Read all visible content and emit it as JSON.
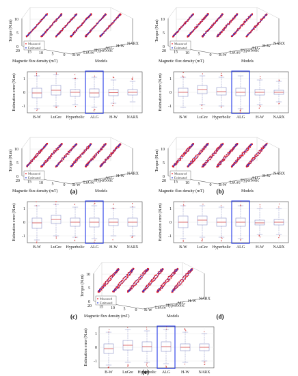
{
  "figure": {
    "common": {
      "torque_label": "Torque (N.m)",
      "flux_label": "Magnetic flux density (mT)",
      "models_label": "Models",
      "error_label": "Estimation error (N.m)",
      "legend_measured": "Measured",
      "legend_estimated": "Estimated",
      "model_names": [
        "B-W",
        "LuGre",
        "Hyperbolic",
        "ALG",
        "H-W",
        "NARX"
      ],
      "torque_ticks": [
        "0",
        "5",
        "10"
      ],
      "flux_ticks": [
        "20",
        "15",
        "10",
        "5",
        "0"
      ],
      "error_ticks": [
        "1",
        "0",
        "-1"
      ],
      "colors": {
        "measured": "#e8191f",
        "estimated": "#2a3bd6",
        "highlight": "#1f35e6",
        "box": "#8a90c8",
        "median": "#d23434"
      }
    },
    "panels": [
      {
        "id": "a",
        "label": "(a)"
      },
      {
        "id": "b",
        "label": "(b)"
      },
      {
        "id": "c",
        "label": "(c)"
      },
      {
        "id": "d",
        "label": "(d)"
      },
      {
        "id": "e",
        "label": "(e)"
      }
    ]
  },
  "chart_data": [
    {
      "type": "scatter",
      "panel": "(a)",
      "xlabel": "Magnetic flux density (mT)",
      "ylabel": "Torque (N.m)",
      "zlabel": "Models",
      "categories": [
        "B-W",
        "LuGre",
        "Hyperbolic",
        "ALG",
        "H-W",
        "NARX"
      ],
      "xlim": [
        0,
        20
      ],
      "ylim": [
        0,
        10
      ],
      "series": [
        {
          "name": "Measured"
        },
        {
          "name": "Estimated"
        }
      ]
    },
    {
      "type": "box",
      "panel": "(a)",
      "ylabel": "Estimation error (N.m)",
      "categories": [
        "B-W",
        "LuGre",
        "Hyperbolic",
        "ALG",
        "H-W",
        "NARX"
      ],
      "ylim": [
        -1.5,
        1.5
      ],
      "highlight": "ALG",
      "boxes": [
        {
          "q1": -0.4,
          "median": -0.05,
          "q3": 0.3,
          "low": -1.2,
          "high": 1.2
        },
        {
          "q1": -0.2,
          "median": 0.15,
          "q3": 0.5,
          "low": -1.0,
          "high": 1.3
        },
        {
          "q1": -0.3,
          "median": 0.0,
          "q3": 0.2,
          "low": -0.9,
          "high": 1.0
        },
        {
          "q1": -0.35,
          "median": -0.05,
          "q3": 0.25,
          "low": -1.1,
          "high": 1.1
        },
        {
          "q1": -0.25,
          "median": -0.02,
          "q3": 0.2,
          "low": -0.8,
          "high": 0.9
        },
        {
          "q1": -0.2,
          "median": 0.0,
          "q3": 0.2,
          "low": -0.7,
          "high": 0.8
        }
      ]
    },
    {
      "type": "scatter",
      "panel": "(b)",
      "xlabel": "Magnetic flux density (mT)",
      "ylabel": "Torque (N.m)",
      "zlabel": "Models",
      "categories": [
        "B-W",
        "LuGre",
        "Hyperbolic",
        "ALG",
        "H-W",
        "NARX"
      ],
      "xlim": [
        0,
        20
      ],
      "ylim": [
        0,
        10
      ],
      "series": [
        {
          "name": "Measured"
        },
        {
          "name": "Estimated"
        }
      ]
    },
    {
      "type": "box",
      "panel": "(b)",
      "ylabel": "Estimation error (N.m)",
      "categories": [
        "B-W",
        "LuGre",
        "Hyperbolic",
        "ALG",
        "H-W",
        "NARX"
      ],
      "ylim": [
        -1.5,
        1.5
      ],
      "highlight": "ALG",
      "boxes": [
        {
          "q1": -0.3,
          "median": 0.0,
          "q3": 0.3,
          "low": -1.1,
          "high": 1.1
        },
        {
          "q1": -0.1,
          "median": 0.2,
          "q3": 0.5,
          "low": -0.9,
          "high": 1.2
        },
        {
          "q1": -0.2,
          "median": 0.05,
          "q3": 0.35,
          "low": -1.0,
          "high": 1.1
        },
        {
          "q1": -0.25,
          "median": 0.0,
          "q3": 0.3,
          "low": -1.2,
          "high": 1.2
        },
        {
          "q1": -0.2,
          "median": 0.0,
          "q3": 0.2,
          "low": -0.9,
          "high": 0.9
        },
        {
          "q1": -0.15,
          "median": 0.0,
          "q3": 0.15,
          "low": -0.7,
          "high": 0.8
        }
      ]
    },
    {
      "type": "scatter",
      "panel": "(c)",
      "xlabel": "Magnetic flux density (mT)",
      "ylabel": "Torque (N.m)",
      "zlabel": "Models",
      "categories": [
        "B-W",
        "LuGre",
        "Hyperbolic",
        "ALG",
        "H-W",
        "NARX"
      ],
      "xlim": [
        0,
        20
      ],
      "ylim": [
        0,
        10
      ],
      "series": [
        {
          "name": "Measured"
        },
        {
          "name": "Estimated"
        }
      ]
    },
    {
      "type": "box",
      "panel": "(c)",
      "ylabel": "Estimation error (N.m)",
      "categories": [
        "B-W",
        "LuGre",
        "Hyperbolic",
        "ALG",
        "H-W",
        "NARX"
      ],
      "ylim": [
        -1.5,
        1.5
      ],
      "highlight": "ALG",
      "boxes": [
        {
          "q1": -0.45,
          "median": -0.05,
          "q3": 0.3,
          "low": -1.3,
          "high": 1.2
        },
        {
          "q1": -0.1,
          "median": 0.2,
          "q3": 0.5,
          "low": -1.0,
          "high": 1.3
        },
        {
          "q1": -0.3,
          "median": 0.0,
          "q3": 0.3,
          "low": -1.1,
          "high": 1.1
        },
        {
          "q1": -0.35,
          "median": 0.0,
          "q3": 0.3,
          "low": -1.2,
          "high": 1.2
        },
        {
          "q1": -0.25,
          "median": 0.0,
          "q3": 0.25,
          "low": -1.0,
          "high": 1.0
        },
        {
          "q1": -0.3,
          "median": 0.0,
          "q3": 0.3,
          "low": -1.0,
          "high": 1.1
        }
      ]
    },
    {
      "type": "scatter",
      "panel": "(d)",
      "xlabel": "Magnetic flux density (mT)",
      "ylabel": "Torque (N.m)",
      "zlabel": "Models",
      "categories": [
        "B-W",
        "LuGre",
        "Hyperbolic",
        "ALG",
        "H-W",
        "NARX"
      ],
      "xlim": [
        0,
        20
      ],
      "ylim": [
        0,
        10
      ],
      "series": [
        {
          "name": "Measured"
        },
        {
          "name": "Estimated"
        }
      ]
    },
    {
      "type": "box",
      "panel": "(d)",
      "ylabel": "Estimation error (N.m)",
      "categories": [
        "B-W",
        "LuGre",
        "Hyperbolic",
        "ALG",
        "H-W",
        "NARX"
      ],
      "ylim": [
        -1.5,
        1.5
      ],
      "highlight": "ALG",
      "boxes": [
        {
          "q1": -0.4,
          "median": 0.0,
          "q3": 0.45,
          "low": -1.2,
          "high": 1.2
        },
        {
          "q1": -0.2,
          "median": 0.15,
          "q3": 0.45,
          "low": -1.1,
          "high": 1.2
        },
        {
          "q1": -0.3,
          "median": 0.0,
          "q3": 0.3,
          "low": -1.1,
          "high": 1.1
        },
        {
          "q1": -0.3,
          "median": 0.0,
          "q3": 0.3,
          "low": -1.2,
          "high": 1.2
        },
        {
          "q1": -0.2,
          "median": -0.05,
          "q3": 0.15,
          "low": -0.9,
          "high": 1.0
        },
        {
          "q1": -0.2,
          "median": 0.0,
          "q3": 0.2,
          "low": -0.9,
          "high": 1.0
        }
      ]
    },
    {
      "type": "scatter",
      "panel": "(e)",
      "xlabel": "Magnetic flux density (mT)",
      "ylabel": "Torque (N.m)",
      "zlabel": "Models",
      "categories": [
        "B-W",
        "LuGre",
        "Hyperbolic",
        "ALG",
        "H-W",
        "NARX"
      ],
      "xlim": [
        0,
        20
      ],
      "ylim": [
        0,
        10
      ],
      "series": [
        {
          "name": "Measured"
        },
        {
          "name": "Estimated"
        }
      ]
    },
    {
      "type": "box",
      "panel": "(e)",
      "ylabel": "Estimation error (N.m)",
      "categories": [
        "B-W",
        "LuGre",
        "Hyperbolic",
        "ALG",
        "H-W",
        "NARX"
      ],
      "ylim": [
        -1.5,
        1.5
      ],
      "highlight": "ALG",
      "boxes": [
        {
          "q1": -0.45,
          "median": -0.1,
          "q3": 0.25,
          "low": -1.3,
          "high": 1.1
        },
        {
          "q1": -0.2,
          "median": 0.15,
          "q3": 0.5,
          "low": -1.1,
          "high": 1.3
        },
        {
          "q1": -0.3,
          "median": 0.05,
          "q3": 0.4,
          "low": -1.1,
          "high": 1.2
        },
        {
          "q1": -0.3,
          "median": 0.05,
          "q3": 0.4,
          "low": -1.2,
          "high": 1.3
        },
        {
          "q1": -0.25,
          "median": 0.0,
          "q3": 0.25,
          "low": -1.1,
          "high": 1.1
        },
        {
          "q1": -0.25,
          "median": 0.0,
          "q3": 0.25,
          "low": -1.0,
          "high": 1.0
        }
      ]
    }
  ]
}
